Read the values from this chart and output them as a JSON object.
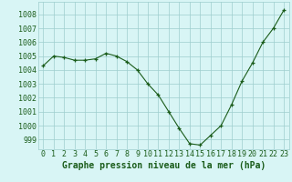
{
  "x": [
    0,
    1,
    2,
    3,
    4,
    5,
    6,
    7,
    8,
    9,
    10,
    11,
    12,
    13,
    14,
    15,
    16,
    17,
    18,
    19,
    20,
    21,
    22,
    23
  ],
  "y": [
    1004.3,
    1005.0,
    1004.9,
    1004.7,
    1004.7,
    1004.8,
    1005.2,
    1005.0,
    1004.6,
    1004.0,
    1003.0,
    1002.2,
    1001.0,
    999.8,
    998.7,
    998.6,
    999.3,
    1000.0,
    1001.5,
    1003.2,
    1004.5,
    1006.0,
    1007.0,
    1008.3
  ],
  "bg_color": "#d8f5f5",
  "grid_color": "#9ecece",
  "line_color": "#1a5c1a",
  "marker_color": "#1a5c1a",
  "title": "Graphe pression niveau de la mer (hPa)",
  "ytick_labels": [
    "999",
    "1000",
    "1001",
    "1002",
    "1003",
    "1004",
    "1005",
    "1006",
    "1007",
    "1008"
  ],
  "ylim": [
    998.3,
    1008.9
  ],
  "xlim": [
    -0.5,
    23.5
  ],
  "title_fontsize": 7,
  "tick_fontsize": 6,
  "title_color": "#1a5c1a",
  "tick_color": "#1a5c1a"
}
